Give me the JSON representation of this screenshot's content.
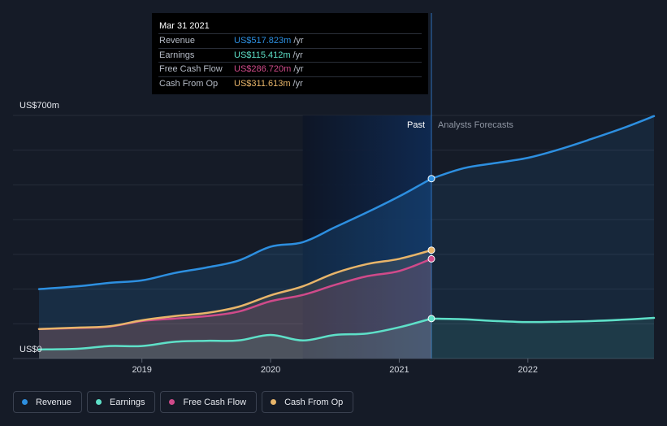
{
  "tooltip": {
    "date": "Mar 31 2021",
    "rows": [
      {
        "name": "Revenue",
        "value": "US$517.823m",
        "unit": "/yr",
        "color": "#2d8fe0"
      },
      {
        "name": "Earnings",
        "value": "US$115.412m",
        "unit": "/yr",
        "color": "#5ee0c8"
      },
      {
        "name": "Free Cash Flow",
        "value": "US$286.720m",
        "unit": "/yr",
        "color": "#d04a8a"
      },
      {
        "name": "Cash From Op",
        "value": "US$311.613m",
        "unit": "/yr",
        "color": "#e8b56a"
      }
    ]
  },
  "legend": [
    {
      "label": "Revenue",
      "color": "#2d8fe0"
    },
    {
      "label": "Earnings",
      "color": "#5ee0c8"
    },
    {
      "label": "Free Cash Flow",
      "color": "#d04a8a"
    },
    {
      "label": "Cash From Op",
      "color": "#e8b56a"
    }
  ],
  "chart_data": {
    "type": "line",
    "ylabel_top": "US$700m",
    "ylabel_bottom": "US$0",
    "ylim": [
      0,
      700
    ],
    "xlim": [
      2018.2,
      2022.98
    ],
    "x_ticks": [
      {
        "label": "2019",
        "value": 2019.0
      },
      {
        "label": "2020",
        "value": 2020.0
      },
      {
        "label": "2021",
        "value": 2021.0
      },
      {
        "label": "2022",
        "value": 2022.0
      }
    ],
    "past_label": "Past",
    "forecast_label": "Analysts Forecasts",
    "past_end": 2021.25,
    "highlight_start": 2020.25,
    "series": [
      {
        "name": "Revenue",
        "color": "#2d8fe0",
        "x": [
          2018.2,
          2018.5,
          2018.75,
          2019.0,
          2019.25,
          2019.5,
          2019.75,
          2020.0,
          2020.25,
          2020.5,
          2020.75,
          2021.0,
          2021.25
        ],
        "y": [
          200,
          208,
          218,
          225,
          246,
          262,
          282,
          322,
          335,
          378,
          421,
          467,
          518
        ],
        "forecast_x": [
          2021.25,
          2021.5,
          2021.75,
          2022.0,
          2022.25,
          2022.5,
          2022.75,
          2022.98
        ],
        "forecast_y": [
          518,
          548,
          563,
          578,
          603,
          633,
          665,
          698
        ]
      },
      {
        "name": "Earnings",
        "color": "#5ee0c8",
        "x": [
          2018.2,
          2018.5,
          2018.75,
          2019.0,
          2019.25,
          2019.5,
          2019.75,
          2020.0,
          2020.25,
          2020.5,
          2020.75,
          2021.0,
          2021.25
        ],
        "y": [
          26,
          28,
          36,
          36,
          48,
          51,
          52,
          68,
          52,
          68,
          72,
          90,
          115
        ],
        "forecast_x": [
          2021.25,
          2021.5,
          2021.75,
          2022.0,
          2022.25,
          2022.5,
          2022.75,
          2022.98
        ],
        "forecast_y": [
          115,
          113,
          108,
          105,
          106,
          108,
          112,
          117
        ]
      },
      {
        "name": "Free Cash Flow",
        "color": "#d04a8a",
        "x": [
          2018.2,
          2018.5,
          2018.75,
          2019.0,
          2019.25,
          2019.5,
          2019.75,
          2020.0,
          2020.25,
          2020.5,
          2020.75,
          2021.0,
          2021.25
        ],
        "y": [
          85,
          88,
          92,
          108,
          115,
          122,
          135,
          165,
          183,
          212,
          237,
          252,
          287
        ]
      },
      {
        "name": "Cash From Op",
        "color": "#e8b56a",
        "x": [
          2018.2,
          2018.5,
          2018.75,
          2019.0,
          2019.25,
          2019.5,
          2019.75,
          2020.0,
          2020.25,
          2020.5,
          2020.75,
          2021.0,
          2021.25
        ],
        "y": [
          85,
          89,
          93,
          110,
          122,
          131,
          149,
          182,
          208,
          246,
          272,
          287,
          312
        ]
      }
    ]
  }
}
